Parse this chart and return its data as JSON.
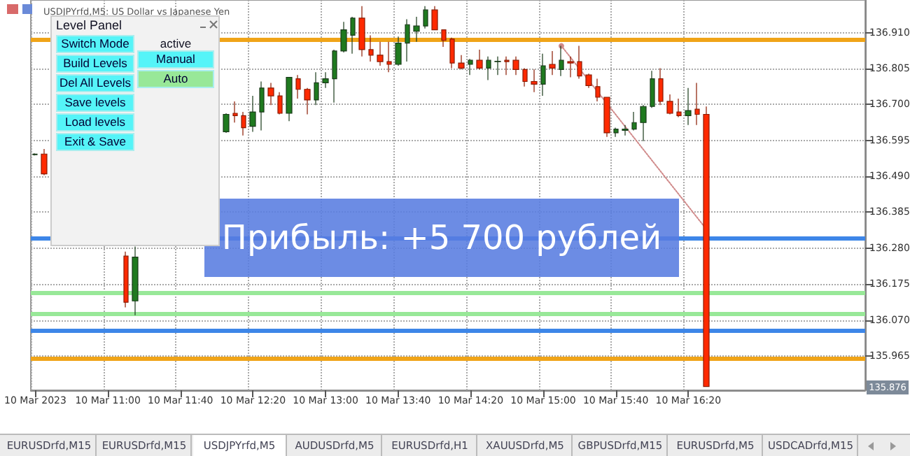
{
  "chart_data": {
    "type": "candlestick",
    "title": "USDJPYrfd,M5: US Dollar vs Japanese Yen",
    "categories": [
      "10 Mar 2023",
      null,
      null,
      null,
      null,
      null,
      null,
      null,
      "10 Mar 11:00",
      null,
      null,
      null,
      null,
      null,
      null,
      null,
      "10 Mar 11:40",
      null,
      null,
      null,
      null,
      null,
      null,
      null,
      "10 Mar 12:20",
      null,
      null,
      null,
      null,
      null,
      null,
      null,
      "10 Mar 13:00",
      null,
      null,
      null,
      null,
      null,
      null,
      null,
      "10 Mar 13:40",
      null,
      null,
      null,
      null,
      null,
      null,
      null,
      "10 Mar 14:20",
      null,
      null,
      null,
      null,
      null,
      null,
      null,
      "10 Mar 15:00",
      null,
      null,
      null,
      null,
      null,
      null,
      null,
      "10 Mar 15:40",
      null,
      null,
      null,
      null,
      null,
      null,
      null,
      "10 Mar 16:20",
      null,
      null,
      null,
      null,
      null,
      null,
      null,
      null,
      null,
      null,
      null,
      null,
      null,
      null,
      null,
      null,
      null,
      null,
      null
    ],
    "ohlc": [
      [
        136.553,
        136.557,
        136.551,
        136.555
      ],
      [
        136.555,
        136.57,
        136.493,
        136.497
      ],
      null,
      null,
      null,
      null,
      null,
      null,
      null,
      null,
      [
        136.257,
        136.27,
        136.107,
        136.122
      ],
      [
        136.126,
        136.285,
        136.084,
        136.254
      ],
      null,
      null,
      null,
      null,
      null,
      null,
      null,
      null,
      null,
      [
        136.62,
        136.674,
        136.617,
        136.671
      ],
      [
        136.674,
        136.709,
        136.647,
        136.667
      ],
      [
        136.667,
        136.678,
        136.609,
        136.632
      ],
      [
        136.636,
        136.725,
        136.62,
        136.678
      ],
      [
        136.678,
        136.767,
        136.624,
        136.748
      ],
      [
        136.748,
        136.763,
        136.698,
        136.725
      ],
      [
        136.725,
        136.736,
        136.671,
        136.674
      ],
      [
        136.674,
        136.779,
        136.651,
        136.779
      ],
      [
        136.775,
        136.786,
        136.717,
        136.744
      ],
      [
        136.744,
        136.748,
        136.671,
        136.713
      ],
      [
        136.713,
        136.794,
        136.698,
        136.763
      ],
      [
        136.763,
        136.794,
        136.748,
        136.775
      ],
      [
        136.775,
        136.86,
        136.705,
        136.856
      ],
      [
        136.856,
        136.941,
        136.852,
        136.918
      ],
      [
        136.902,
        136.956,
        136.848,
        136.952
      ],
      [
        136.952,
        136.987,
        136.84,
        136.86
      ],
      [
        136.86,
        136.902,
        136.825,
        136.844
      ],
      [
        136.844,
        136.883,
        136.813,
        136.825
      ],
      [
        136.825,
        136.883,
        136.794,
        136.817
      ],
      [
        136.817,
        136.898,
        136.813,
        136.879
      ],
      [
        136.879,
        136.949,
        136.825,
        136.933
      ],
      [
        136.914,
        136.956,
        136.883,
        136.929
      ],
      [
        136.929,
        136.987,
        136.922,
        136.976
      ],
      [
        136.976,
        136.987,
        136.918,
        136.918
      ],
      [
        136.918,
        136.918,
        136.868,
        136.887
      ],
      [
        136.891,
        136.895,
        136.806,
        136.821
      ],
      [
        136.821,
        136.844,
        136.802,
        136.806
      ],
      [
        136.817,
        136.833,
        136.786,
        136.829
      ],
      [
        136.829,
        136.86,
        136.802,
        136.806
      ],
      [
        136.806,
        136.84,
        136.771,
        136.829
      ],
      [
        136.825,
        136.84,
        136.786,
        136.826
      ],
      [
        136.829,
        136.84,
        136.786,
        136.825
      ],
      [
        136.829,
        136.84,
        136.786,
        136.802
      ],
      [
        136.802,
        136.806,
        136.752,
        136.767
      ],
      [
        136.767,
        136.802,
        136.736,
        136.759
      ],
      [
        136.759,
        136.848,
        136.725,
        136.813
      ],
      [
        136.817,
        136.856,
        136.786,
        136.806
      ],
      [
        136.802,
        136.871,
        136.783,
        136.829
      ],
      [
        136.825,
        136.84,
        136.779,
        136.821
      ],
      [
        136.825,
        136.871,
        136.775,
        136.783
      ],
      [
        136.786,
        136.79,
        136.748,
        136.755
      ],
      [
        136.752,
        136.775,
        136.709,
        136.721
      ],
      [
        136.721,
        136.721,
        136.605,
        136.617
      ],
      [
        136.617,
        136.632,
        136.605,
        136.628
      ],
      [
        136.624,
        136.64,
        136.609,
        136.628
      ],
      [
        136.628,
        136.678,
        136.624,
        136.647
      ],
      [
        136.647,
        136.698,
        136.593,
        136.694
      ],
      [
        136.694,
        136.798,
        136.69,
        136.775
      ],
      [
        136.775,
        136.806,
        136.698,
        136.709
      ],
      [
        136.709,
        136.729,
        136.671,
        136.674
      ],
      [
        136.678,
        136.717,
        136.663,
        136.667
      ],
      [
        136.667,
        136.748,
        136.64,
        136.682
      ],
      [
        136.686,
        136.763,
        136.64,
        136.671
      ],
      [
        136.671,
        136.694,
        135.876,
        135.876
      ],
      null,
      null,
      null,
      null,
      null,
      null,
      null,
      null,
      null,
      null,
      null,
      null,
      null,
      null,
      null,
      null,
      null
    ],
    "series": [
      {
        "type": "line",
        "color": "#d08a8a",
        "line_style": "dotted",
        "marker": "circle",
        "values": [
          null,
          null,
          null,
          null,
          null,
          null,
          null,
          null,
          null,
          null,
          null,
          null,
          null,
          null,
          null,
          null,
          null,
          null,
          null,
          null,
          null,
          null,
          null,
          null,
          null,
          null,
          null,
          null,
          null,
          null,
          null,
          null,
          null,
          null,
          null,
          null,
          null,
          null,
          null,
          null,
          null,
          null,
          null,
          null,
          null,
          null,
          null,
          null,
          null,
          null,
          null,
          null,
          null,
          null,
          null,
          null,
          null,
          null,
          136.871,
          null,
          null,
          null,
          null,
          null,
          null,
          null,
          null,
          null,
          null,
          null,
          null,
          null,
          null,
          null,
          136.335,
          null,
          null,
          null,
          null,
          null,
          null,
          null,
          null,
          null,
          null,
          null,
          null,
          null,
          null,
          null,
          null,
          null
        ]
      }
    ],
    "ylim": [
      135.865,
      137.005
    ],
    "yticks": [
      135.965,
      {
        "value": 136.07,
        "label": "136.070"
      },
      136.175,
      {
        "value": 136.28,
        "label": "136.280"
      },
      136.385,
      {
        "value": 136.49,
        "label": "136.490"
      },
      136.595,
      {
        "value": 136.7,
        "label": "136.700"
      },
      136.805,
      {
        "value": 136.91,
        "label": "136.910"
      }
    ],
    "grid": true,
    "ref_lines": [
      {
        "axis": "y",
        "value": 136.887,
        "color": "#f0a418"
      },
      {
        "axis": "y",
        "value": 135.96,
        "color": "#f0a418"
      },
      {
        "axis": "y",
        "value": 136.312,
        "color": "#3d86e8"
      },
      {
        "axis": "y",
        "value": 136.045,
        "color": "#3d86e8"
      },
      {
        "axis": "y",
        "value": 136.149,
        "color": "#98e898"
      },
      {
        "axis": "y",
        "value": 136.088,
        "color": "#98e898"
      }
    ],
    "annotations": [
      "Прибыль: +5 700 рублей",
      "Level Panel",
      "Switch Mode",
      "Build Levels",
      "Del All Levels",
      "Save levels",
      "Load levels",
      "Exit & Save",
      "active",
      "Manual",
      "Auto",
      "EURUSDrfd,M15",
      "EURUSDrfd,M15",
      "USDJPYrfd,M5",
      "AUDUSDrfd,M5",
      "EURUSDrfd,H1",
      "XAUUSDrfd,M5",
      "GBPUSDrfd,M15",
      "EURUSDrfd,M5",
      "USDCADrfd,M15",
      "135.876"
    ]
  }
}
